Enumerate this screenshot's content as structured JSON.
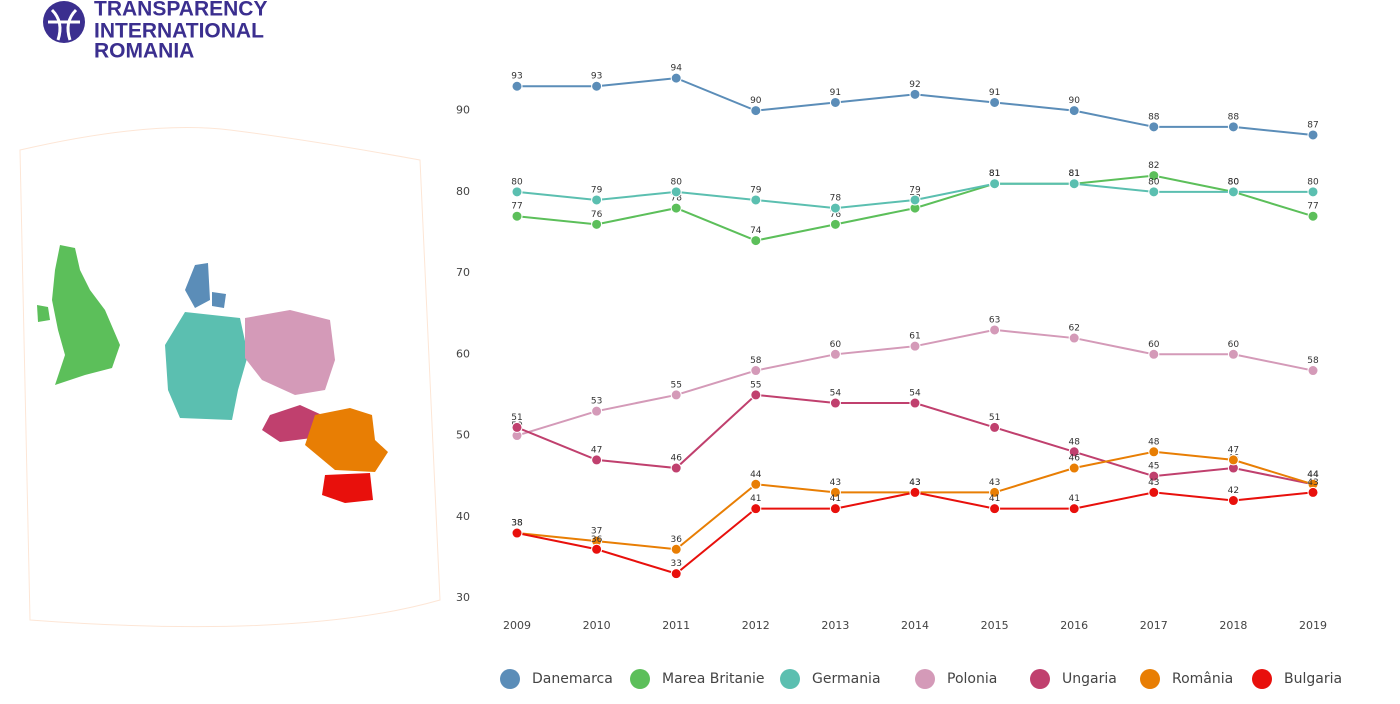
{
  "logo": {
    "lines": [
      "TRANSPARENCY",
      "INTERNATIONAL",
      "ROMANIA"
    ]
  },
  "chart_data": {
    "type": "line",
    "categories": [
      "2009",
      "2010",
      "2011",
      "2012",
      "2013",
      "2014",
      "2015",
      "2016",
      "2017",
      "2018",
      "2019"
    ],
    "ylim": [
      30,
      95
    ],
    "yticks": [
      30,
      40,
      50,
      60,
      70,
      80,
      90
    ],
    "series": [
      {
        "name": "Danemarca",
        "color": "#5b8db8",
        "values": [
          93,
          93,
          94,
          90,
          91,
          92,
          91,
          90,
          88,
          88,
          87
        ]
      },
      {
        "name": "Marea Britanie",
        "color": "#5cbf5a",
        "values": [
          77,
          76,
          78,
          74,
          76,
          78,
          81,
          81,
          82,
          80,
          77
        ]
      },
      {
        "name": "Germania",
        "color": "#5bbfb0",
        "values": [
          80,
          79,
          80,
          79,
          78,
          79,
          81,
          81,
          80,
          80,
          80
        ]
      },
      {
        "name": "Polonia",
        "color": "#d49ab8",
        "values": [
          50,
          53,
          55,
          58,
          60,
          61,
          63,
          62,
          60,
          60,
          58
        ]
      },
      {
        "name": "Ungaria",
        "color": "#c0406e",
        "values": [
          51,
          47,
          46,
          55,
          54,
          54,
          51,
          48,
          45,
          46,
          44
        ]
      },
      {
        "name": "România",
        "color": "#e87e04",
        "values": [
          38,
          37,
          36,
          44,
          43,
          43,
          43,
          46,
          48,
          47,
          44
        ]
      },
      {
        "name": "Bulgaria",
        "color": "#e8100c",
        "values": [
          38,
          36,
          33,
          41,
          41,
          43,
          41,
          41,
          43,
          42,
          43
        ]
      }
    ]
  }
}
